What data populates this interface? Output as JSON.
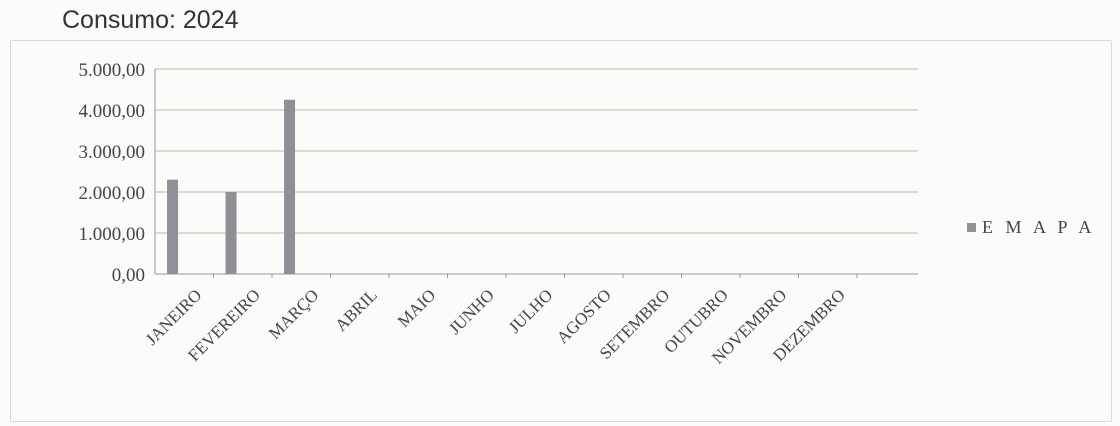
{
  "chart_data": {
    "type": "bar",
    "title": "Consumo: 2024",
    "categories": [
      "JANEIRO",
      "FEVEREIRO",
      "MARÇO",
      "ABRIL",
      "MAIO",
      "JUNHO",
      "JULHO",
      "AGOSTO",
      "SETEMBRO",
      "OUTUBRO",
      "NOVEMBRO",
      "DEZEMBRO"
    ],
    "series": [
      {
        "name": "E M A P A",
        "values": [
          2300,
          2000,
          4250,
          0,
          0,
          0,
          0,
          0,
          0,
          0,
          0,
          0
        ],
        "color": "#8f8f95"
      }
    ],
    "ylim": [
      0,
      5000
    ],
    "y_ticks": [
      0,
      1000,
      2000,
      3000,
      4000,
      5000
    ],
    "y_tick_labels": [
      "0,00",
      "1.000,00",
      "2.000,00",
      "3.000,00",
      "4.000,00",
      "5.000,00"
    ],
    "grid": true,
    "legend_position": "right"
  }
}
